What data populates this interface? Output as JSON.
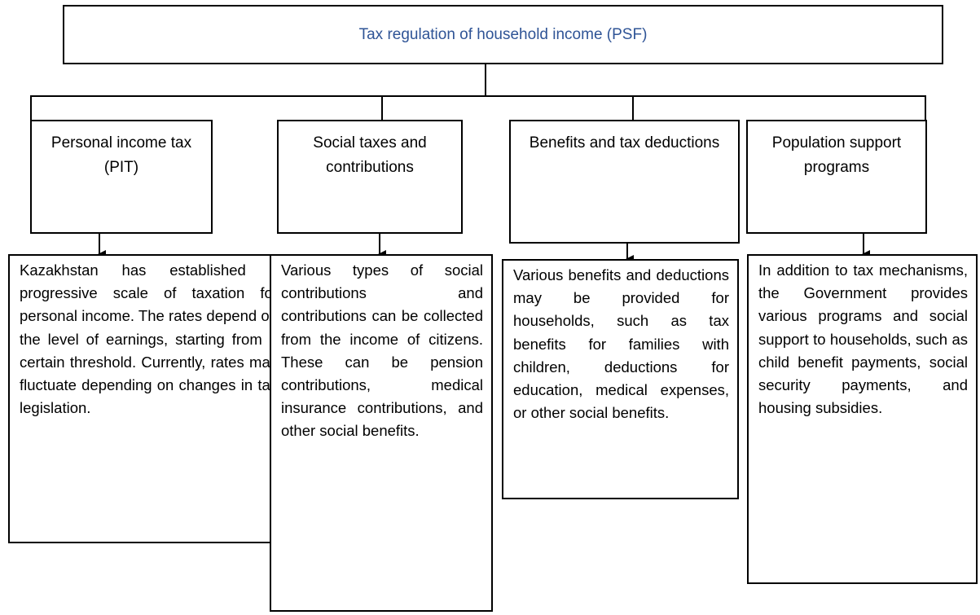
{
  "title": "Tax regulation of household income (PSF)",
  "columns": [
    {
      "heading": "Personal income tax (PIT)",
      "description": "Kazakhstan has established a progressive scale of taxation for personal income. The rates depend on the level of earnings, starting from a certain threshold. Currently, rates may fluctuate depending on changes in tax legislation."
    },
    {
      "heading": "Social taxes and contributions",
      "description": "Various types of social contributions and contributions can be collected from the income of citizens. These can be pension contributions, medical insurance contributions, and other social benefits."
    },
    {
      "heading": "Benefits and tax deductions",
      "description": "Various benefits and deductions may be provided for households, such as tax benefits for families with children, deductions for education, medical expenses, or other social benefits."
    },
    {
      "heading": "Population support programs",
      "description": "In addition to tax mechanisms, the Government provides various programs and social support to households, such as child benefit payments, social security payments, and housing subsidies."
    }
  ]
}
